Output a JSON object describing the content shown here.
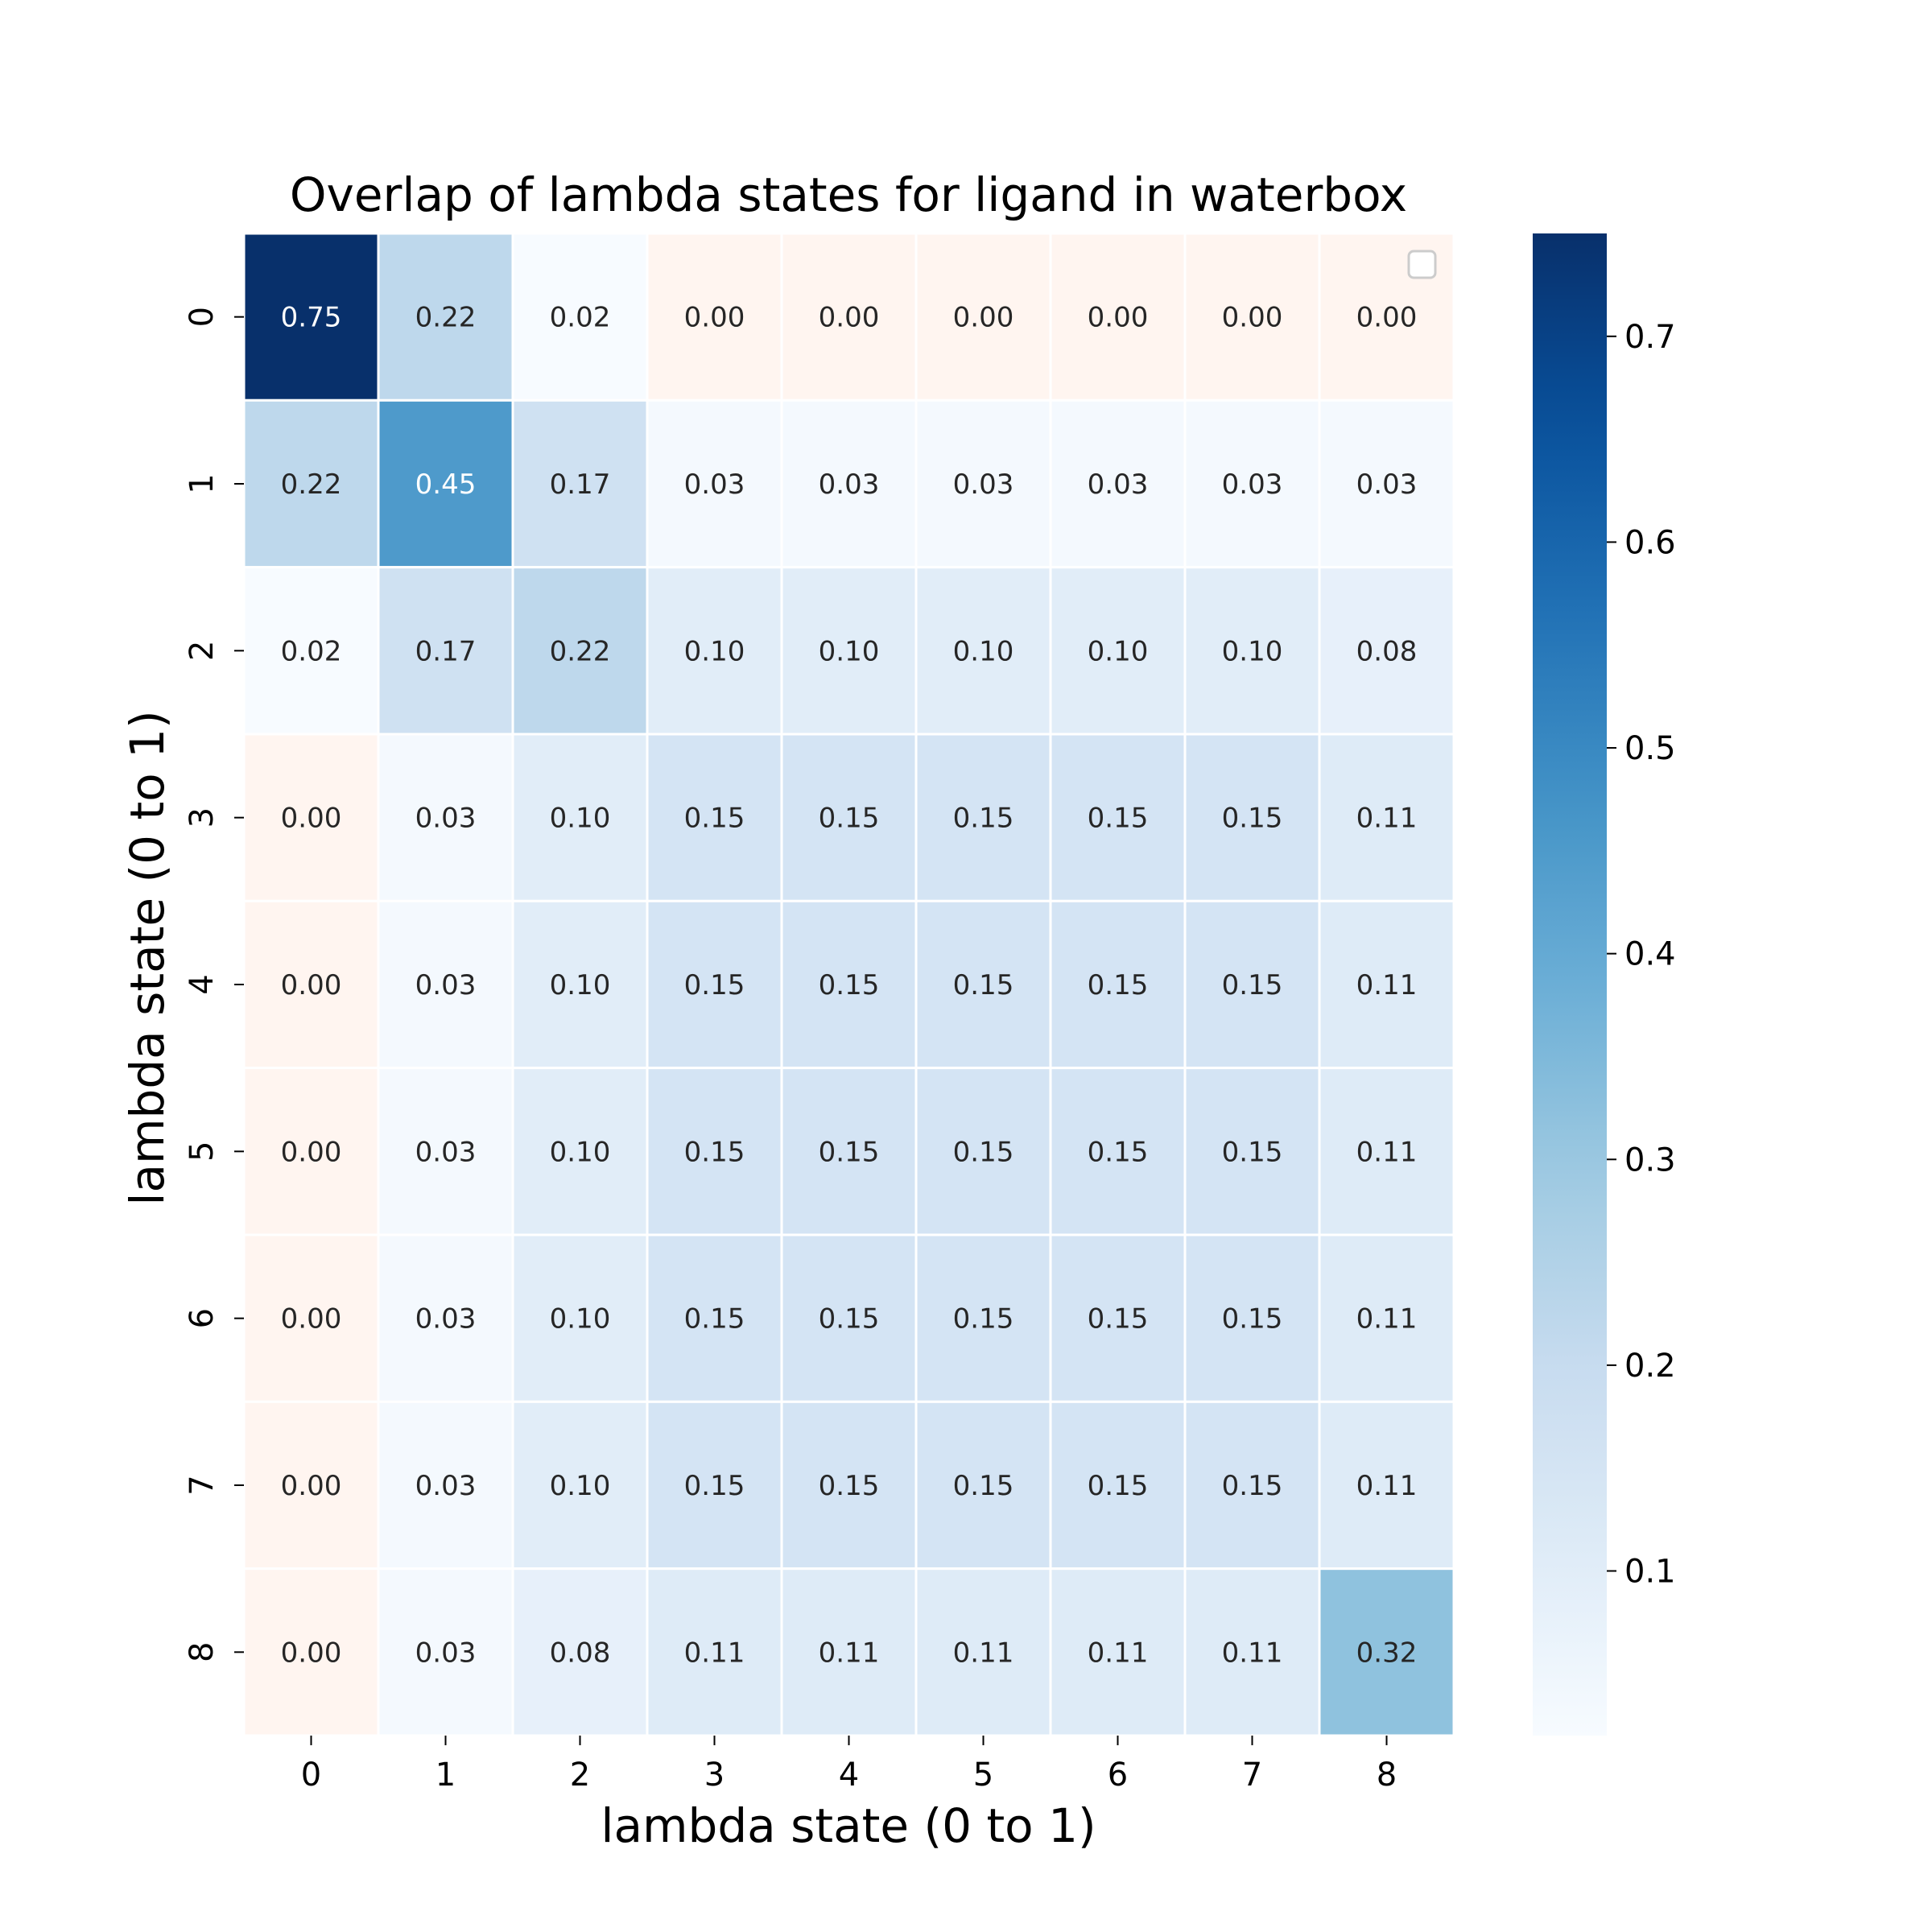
{
  "chart_data": {
    "type": "heatmap",
    "title": "Overlap of lambda states for ligand in waterbox",
    "xlabel": "lambda state (0 to 1)",
    "ylabel": "lambda state (0 to 1)",
    "x_categories": [
      "0",
      "1",
      "2",
      "3",
      "4",
      "5",
      "6",
      "7",
      "8"
    ],
    "y_categories": [
      "0",
      "1",
      "2",
      "3",
      "4",
      "5",
      "6",
      "7",
      "8"
    ],
    "values": [
      [
        0.75,
        0.22,
        0.02,
        0.0,
        0.0,
        0.0,
        0.0,
        0.0,
        0.0
      ],
      [
        0.22,
        0.45,
        0.17,
        0.03,
        0.03,
        0.03,
        0.03,
        0.03,
        0.03
      ],
      [
        0.02,
        0.17,
        0.22,
        0.1,
        0.1,
        0.1,
        0.1,
        0.1,
        0.08
      ],
      [
        0.0,
        0.03,
        0.1,
        0.15,
        0.15,
        0.15,
        0.15,
        0.15,
        0.11
      ],
      [
        0.0,
        0.03,
        0.1,
        0.15,
        0.15,
        0.15,
        0.15,
        0.15,
        0.11
      ],
      [
        0.0,
        0.03,
        0.1,
        0.15,
        0.15,
        0.15,
        0.15,
        0.15,
        0.11
      ],
      [
        0.0,
        0.03,
        0.1,
        0.15,
        0.15,
        0.15,
        0.15,
        0.15,
        0.11
      ],
      [
        0.0,
        0.03,
        0.1,
        0.15,
        0.15,
        0.15,
        0.15,
        0.15,
        0.11
      ],
      [
        0.0,
        0.03,
        0.08,
        0.11,
        0.11,
        0.11,
        0.11,
        0.11,
        0.32
      ]
    ],
    "value_labels": [
      [
        "0.75",
        "0.22",
        "0.02",
        "0.00",
        "0.00",
        "0.00",
        "0.00",
        "0.00",
        "0.00"
      ],
      [
        "0.22",
        "0.45",
        "0.17",
        "0.03",
        "0.03",
        "0.03",
        "0.03",
        "0.03",
        "0.03"
      ],
      [
        "0.02",
        "0.17",
        "0.22",
        "0.10",
        "0.10",
        "0.10",
        "0.10",
        "0.10",
        "0.08"
      ],
      [
        "0.00",
        "0.03",
        "0.10",
        "0.15",
        "0.15",
        "0.15",
        "0.15",
        "0.15",
        "0.11"
      ],
      [
        "0.00",
        "0.03",
        "0.10",
        "0.15",
        "0.15",
        "0.15",
        "0.15",
        "0.15",
        "0.11"
      ],
      [
        "0.00",
        "0.03",
        "0.10",
        "0.15",
        "0.15",
        "0.15",
        "0.15",
        "0.15",
        "0.11"
      ],
      [
        "0.00",
        "0.03",
        "0.10",
        "0.15",
        "0.15",
        "0.15",
        "0.15",
        "0.15",
        "0.11"
      ],
      [
        "0.00",
        "0.03",
        "0.10",
        "0.15",
        "0.15",
        "0.15",
        "0.15",
        "0.15",
        "0.11"
      ],
      [
        "0.00",
        "0.03",
        "0.08",
        "0.11",
        "0.11",
        "0.11",
        "0.11",
        "0.11",
        "0.32"
      ]
    ],
    "zero_cell_color": "#fff5f0",
    "colormap": "Blues",
    "colorbar": {
      "range": [
        0.02,
        0.75
      ],
      "ticks": [
        0.1,
        0.2,
        0.3,
        0.4,
        0.5,
        0.6,
        0.7
      ],
      "tick_labels": [
        "0.1",
        "0.2",
        "0.3",
        "0.4",
        "0.5",
        "0.6",
        "0.7"
      ]
    },
    "legend": "top-right",
    "grid": false
  }
}
